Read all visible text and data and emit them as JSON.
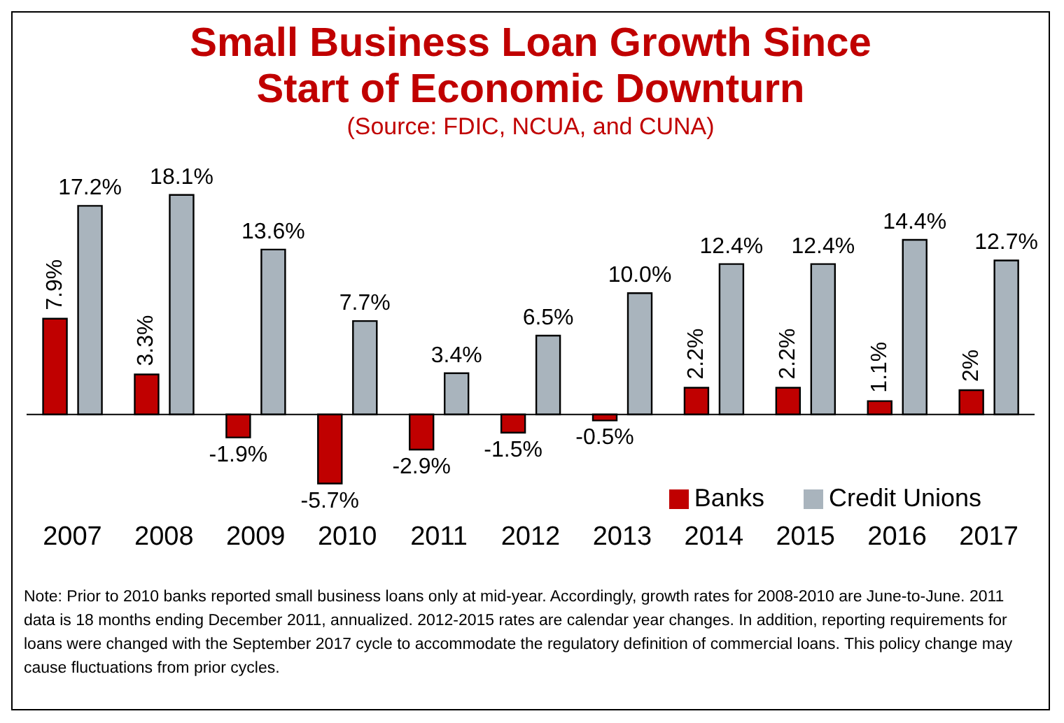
{
  "chart_data": {
    "type": "bar",
    "title": "Small Business Loan Growth Since Start of Economic Downturn",
    "subtitle": "(Source: FDIC, NCUA, and CUNA)",
    "categories": [
      "2007",
      "2008",
      "2009",
      "2010",
      "2011",
      "2012",
      "2013",
      "2014",
      "2015",
      "2016",
      "2017"
    ],
    "series": [
      {
        "name": "Banks",
        "color": "#c00000",
        "values": [
          7.9,
          3.3,
          -1.9,
          -5.7,
          -2.9,
          -1.5,
          -0.5,
          2.2,
          2.2,
          1.1,
          2
        ],
        "value_labels": [
          "7.9%",
          "3.3%",
          "-1.9%",
          "-5.7%",
          "-2.9%",
          "-1.5%",
          "-0.5%",
          "2.2%",
          "2.2%",
          "1.1%",
          "2%"
        ]
      },
      {
        "name": "Credit Unions",
        "color": "#a9b4bd",
        "values": [
          17.2,
          18.1,
          13.6,
          7.7,
          3.4,
          6.5,
          10.0,
          12.4,
          12.4,
          14.4,
          12.7
        ],
        "value_labels": [
          "17.2%",
          "18.1%",
          "13.6%",
          "7.7%",
          "3.4%",
          "6.5%",
          "10.0%",
          "12.4%",
          "12.4%",
          "14.4%",
          "12.7%"
        ]
      }
    ],
    "legend": "bottom right",
    "grid": false,
    "annotations": [
      "Note: Prior to 2010 banks reported small business loans only at mid-year.  Accordingly, growth rates for 2008-2010 are June-to-June.  2011 data is 18 months ending  December 2011, annualized.  2012-2015 rates are calendar year changes. In addition, reporting requirements for loans were changed with the September 2017 cycle to accommodate the regulatory definition of commercial loans. This policy change may cause fluctuations from prior cycles."
    ]
  }
}
